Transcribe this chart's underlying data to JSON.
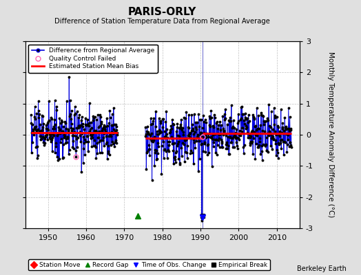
{
  "title": "PARIS-ORLY",
  "subtitle": "Difference of Station Temperature Data from Regional Average",
  "ylabel": "Monthly Temperature Anomaly Difference (°C)",
  "xlabel_years": [
    1950,
    1960,
    1970,
    1980,
    1990,
    2000,
    2010
  ],
  "ylim": [
    -3,
    3
  ],
  "yticks": [
    -3,
    -2,
    -1,
    0,
    1,
    2,
    3
  ],
  "bg_color": "#e0e0e0",
  "plot_bg_color": "#ffffff",
  "data_color": "#0000dd",
  "dot_color": "#000000",
  "bias_color": "#ff0000",
  "qc_color": "#ff69b4",
  "grid_color": "#c0c0c0",
  "gap_start": 1968.25,
  "gap_end": 1975.5,
  "segment1_start": 1945.5,
  "segment2_end": 2013.9,
  "bias1": 0.07,
  "bias2": -0.12,
  "bias3": 0.05,
  "split_year": 1990.5,
  "record_gap_x": 1973.5,
  "empirical_break_x": 1990.5,
  "obs_change_x": 1990.5,
  "watermark": "Berkeley Earth",
  "xlim_left": 1944.0,
  "xlim_right": 2016.0,
  "seed": 42
}
